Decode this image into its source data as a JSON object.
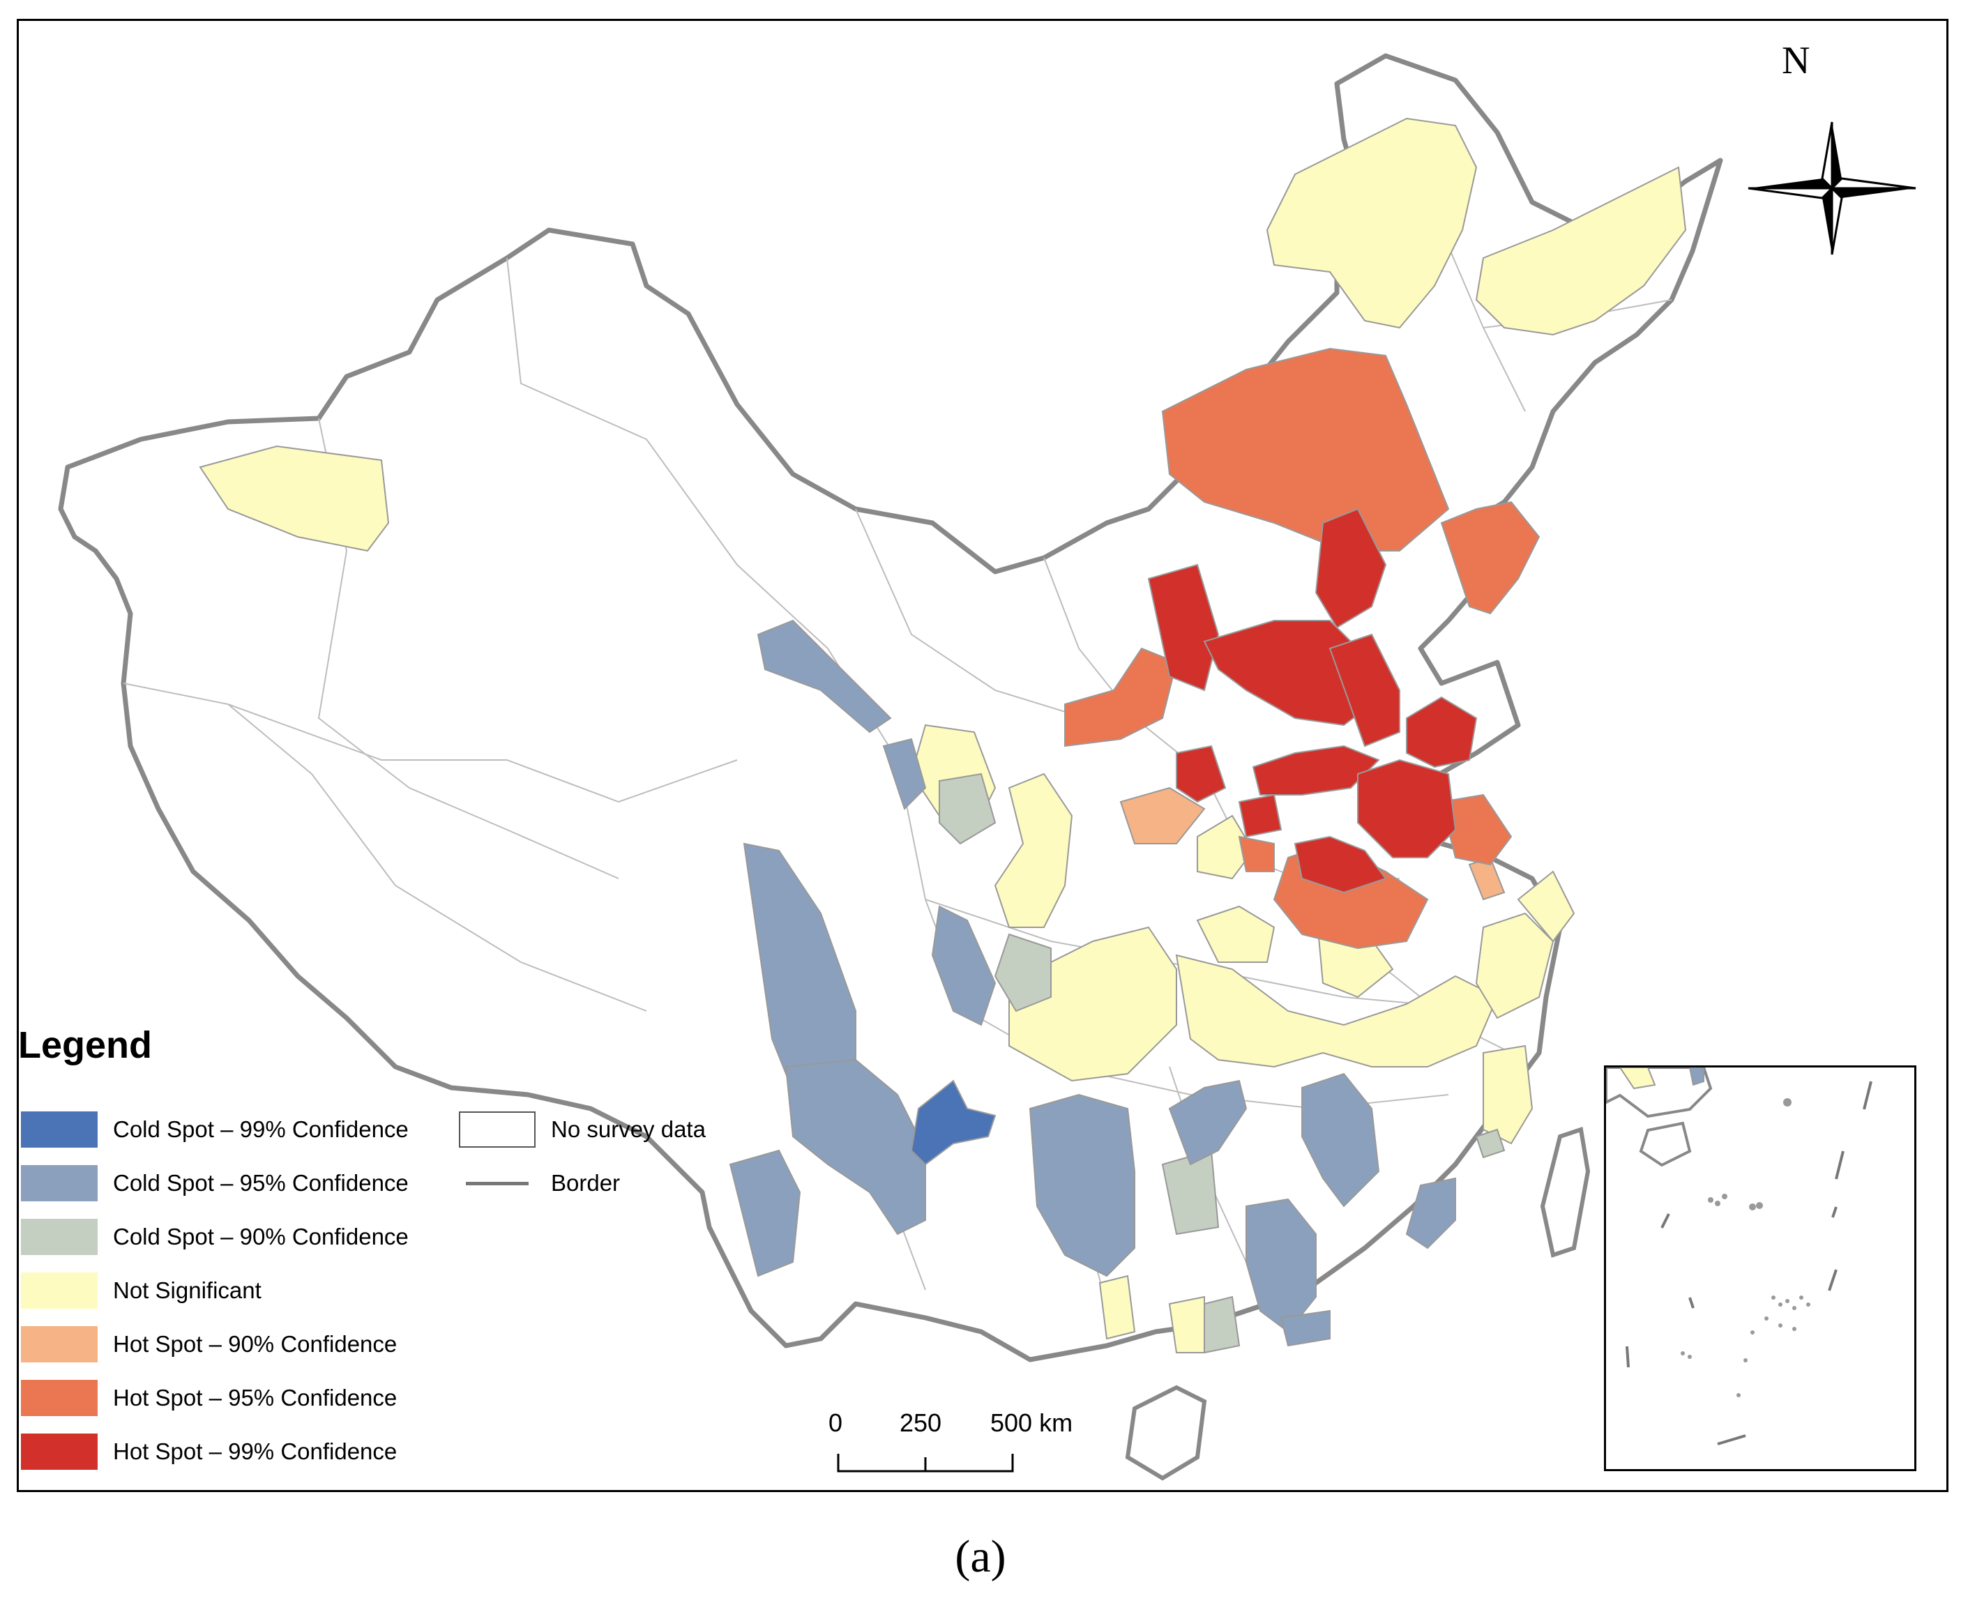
{
  "legend": {
    "title": "Legend",
    "items": [
      {
        "label": "Cold Spot – 99% Confidence",
        "color": "#4a74b6"
      },
      {
        "label": "Cold Spot – 95% Confidence",
        "color": "#8aa0bd"
      },
      {
        "label": "Cold Spot – 90% Confidence",
        "color": "#c4cec1"
      },
      {
        "label": "Not Significant",
        "color": "#fdfbbf"
      },
      {
        "label": "Hot Spot – 90% Confidence",
        "color": "#f6b386"
      },
      {
        "label": "Hot Spot – 95% Confidence",
        "color": "#ea7752"
      },
      {
        "label": "Hot Spot – 99% Confidence",
        "color": "#d2302a"
      }
    ],
    "extra": [
      {
        "label": "No survey data",
        "color": "#ffffff"
      },
      {
        "label": "Border",
        "color": "#777777"
      }
    ]
  },
  "scale_bar": {
    "labels": [
      "0",
      "250",
      "500 km"
    ]
  },
  "north_arrow": {
    "label": "N"
  },
  "caption": "(a)",
  "icons": {
    "north": "compass-rose-icon"
  }
}
